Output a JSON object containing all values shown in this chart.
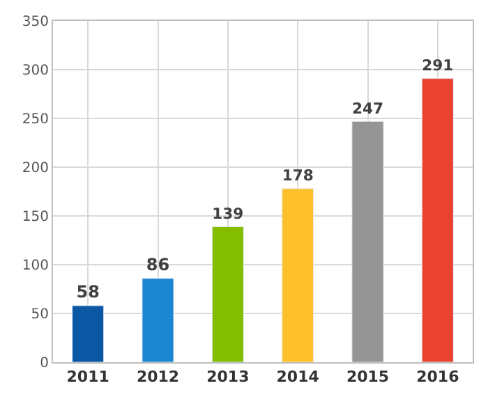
{
  "chart_data": {
    "type": "bar",
    "categories": [
      "2011",
      "2012",
      "2013",
      "2014",
      "2015",
      "2016"
    ],
    "values": [
      58,
      86,
      139,
      178,
      247,
      291
    ],
    "colors": [
      "#0b57a4",
      "#1b87d0",
      "#84bd00",
      "#ffc12b",
      "#959595",
      "#e9432f"
    ],
    "ylim": [
      0,
      350
    ],
    "yticks": [
      0,
      50,
      100,
      150,
      200,
      250,
      300,
      350
    ],
    "grid": true,
    "data_labels": true
  }
}
